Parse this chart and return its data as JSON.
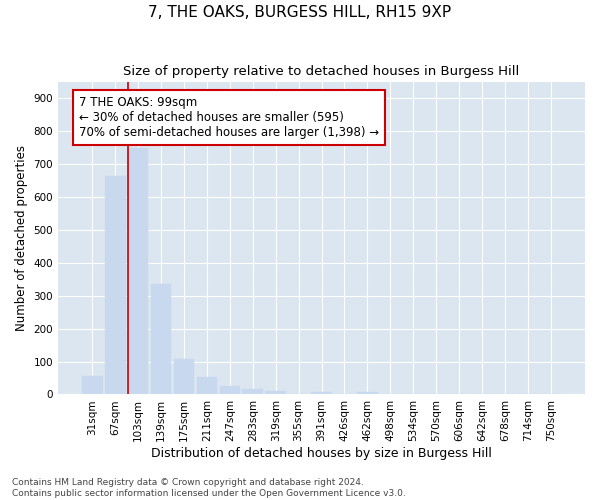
{
  "title": "7, THE OAKS, BURGESS HILL, RH15 9XP",
  "subtitle": "Size of property relative to detached houses in Burgess Hill",
  "xlabel": "Distribution of detached houses by size in Burgess Hill",
  "ylabel": "Number of detached properties",
  "bar_labels": [
    "31sqm",
    "67sqm",
    "103sqm",
    "139sqm",
    "175sqm",
    "211sqm",
    "247sqm",
    "283sqm",
    "319sqm",
    "355sqm",
    "391sqm",
    "426sqm",
    "462sqm",
    "498sqm",
    "534sqm",
    "570sqm",
    "606sqm",
    "642sqm",
    "678sqm",
    "714sqm",
    "750sqm"
  ],
  "bar_values": [
    55,
    665,
    750,
    335,
    108,
    52,
    25,
    17,
    10,
    0,
    8,
    0,
    8,
    0,
    0,
    0,
    0,
    0,
    0,
    0,
    0
  ],
  "bar_color": "#c8d8ee",
  "vline_x": 2,
  "vline_color": "#cc0000",
  "annotation_box_text": "7 THE OAKS: 99sqm\n← 30% of detached houses are smaller (595)\n70% of semi-detached houses are larger (1,398) →",
  "annotation_box_color": "#cc0000",
  "ylim": [
    0,
    950
  ],
  "yticks": [
    0,
    100,
    200,
    300,
    400,
    500,
    600,
    700,
    800,
    900
  ],
  "footnote": "Contains HM Land Registry data © Crown copyright and database right 2024.\nContains public sector information licensed under the Open Government Licence v3.0.",
  "fig_bg_color": "#ffffff",
  "plot_bg_color": "#dce6f0",
  "grid_color": "#ffffff",
  "title_fontsize": 11,
  "subtitle_fontsize": 9.5,
  "xlabel_fontsize": 9,
  "ylabel_fontsize": 8.5,
  "tick_fontsize": 7.5,
  "footnote_fontsize": 6.5,
  "annotation_fontsize": 8.5
}
